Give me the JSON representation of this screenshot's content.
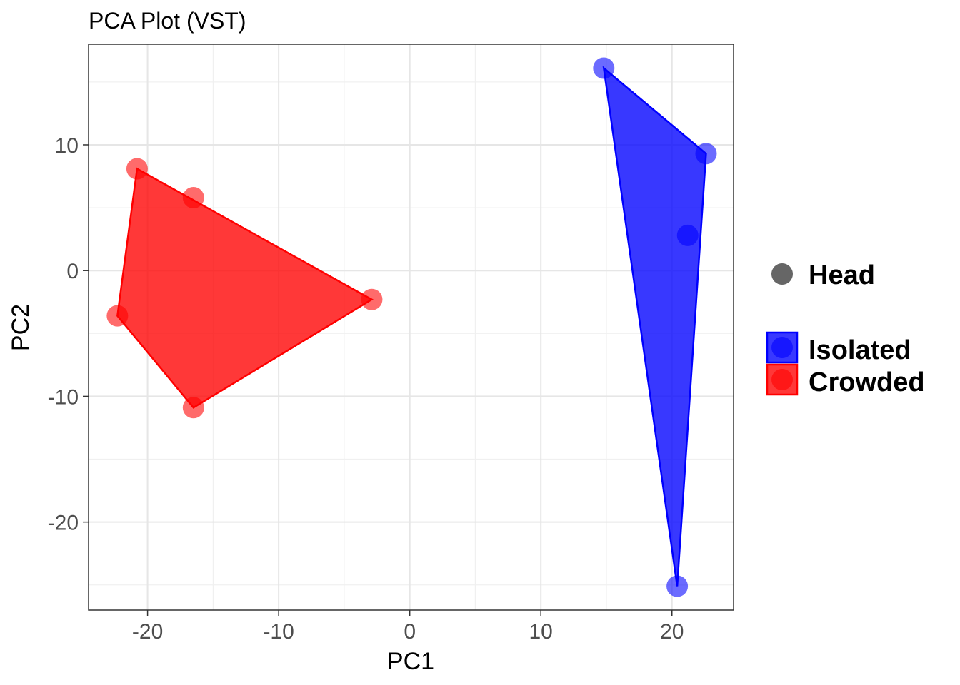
{
  "chart_data": {
    "type": "scatter",
    "title": "PCA Plot (VST)",
    "xlabel": "PC1",
    "ylabel": "PC2",
    "xlim": [
      -24.5,
      24.7
    ],
    "ylim": [
      -27.0,
      18.0
    ],
    "xticks": [
      -20,
      -10,
      0,
      10,
      20
    ],
    "yticks": [
      -20,
      -10,
      0,
      10
    ],
    "xtick_labels": [
      "-20",
      "-10",
      "0",
      "10",
      "20"
    ],
    "ytick_labels": [
      "-20",
      "-10",
      "0",
      "10"
    ],
    "grid": true,
    "legend_position": "right",
    "shape_legend": {
      "label": "Head",
      "color": "#666666"
    },
    "series": [
      {
        "name": "Isolated",
        "color": "#0000ff",
        "points": [
          {
            "x": 14.8,
            "y": 16.1
          },
          {
            "x": 22.6,
            "y": 9.3
          },
          {
            "x": 21.2,
            "y": 2.8
          },
          {
            "x": 20.4,
            "y": -25.1
          }
        ],
        "hull": [
          0,
          1,
          3
        ]
      },
      {
        "name": "Crowded",
        "color": "#ff0000",
        "points": [
          {
            "x": -20.8,
            "y": 8.1
          },
          {
            "x": -16.5,
            "y": 5.8
          },
          {
            "x": -2.9,
            "y": -2.3
          },
          {
            "x": -22.3,
            "y": -3.6
          },
          {
            "x": -16.5,
            "y": -10.9
          }
        ],
        "hull": [
          0,
          2,
          4,
          3
        ]
      }
    ]
  }
}
